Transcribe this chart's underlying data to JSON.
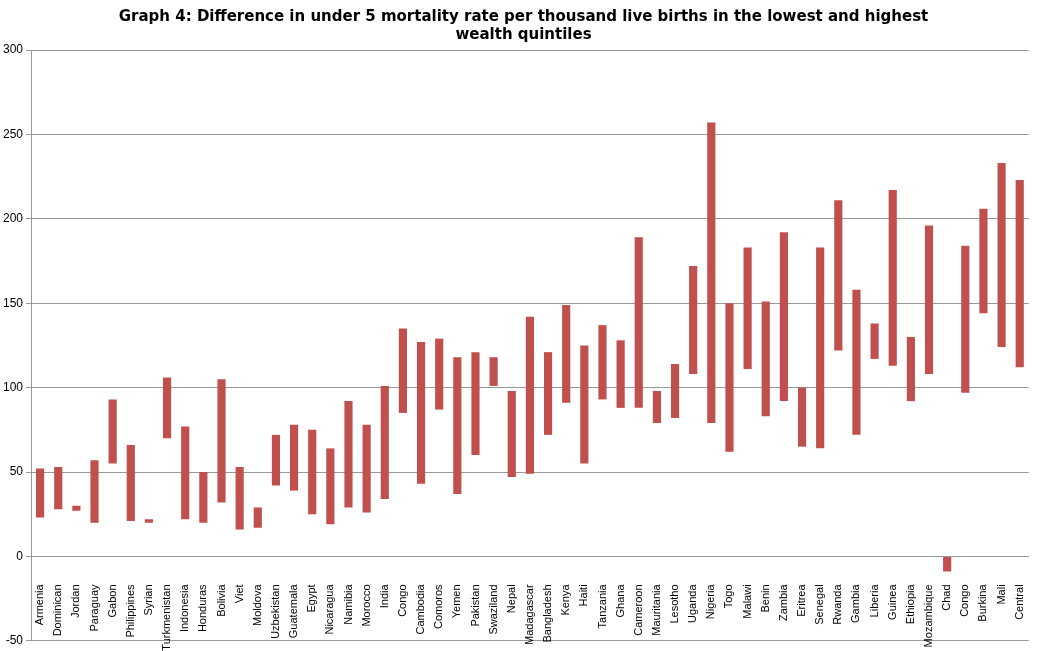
{
  "chart_data": {
    "type": "bar",
    "title": "Graph 4: Difference in under 5 mortality rate per thousand live births in the lowest and highest wealth quintiles",
    "categories": [
      "Armenia",
      "Dominican",
      "Jordan",
      "Paraguay",
      "Gabon",
      "Philippines",
      "Syrian",
      "Turkmenistan",
      "Indonesia",
      "Honduras",
      "Bolivia",
      "Viet",
      "Moldova",
      "Uzbekistan",
      "Guatemala",
      "Egypt",
      "Nicaragua",
      "Namibia",
      "Morocco",
      "India",
      "Congo",
      "Cambodia",
      "Comoros",
      "Yemen",
      "Pakistan",
      "Swaziland",
      "Nepal",
      "Madagascar",
      "Bangladesh",
      "Kenya",
      "Haiti",
      "Tanzania",
      "Ghana",
      "Cameroon",
      "Mauritania",
      "Lesotho",
      "Uganda",
      "Nigeria",
      "Togo",
      "Malawi",
      "Benin",
      "Zambia",
      "Eritrea",
      "Senegal",
      "Rwanda",
      "Gambia",
      "Liberia",
      "Guinea",
      "Ethiopia",
      "Mozambique",
      "Chad",
      "Congo",
      "Burkina",
      "Mali",
      "Central"
    ],
    "base": [
      23,
      28,
      27,
      20,
      55,
      21,
      20,
      70,
      22,
      20,
      32,
      16,
      17,
      42,
      39,
      25,
      19,
      29,
      26,
      34,
      85,
      43,
      87,
      37,
      60,
      101,
      47,
      49,
      72,
      91,
      55,
      93,
      88,
      88,
      79,
      82,
      108,
      79,
      62,
      111,
      83,
      92,
      65,
      64,
      122,
      72,
      117,
      113,
      92,
      108,
      -9,
      97,
      144,
      124,
      112
    ],
    "values": [
      29,
      25,
      3,
      37,
      38,
      45,
      2,
      36,
      55,
      30,
      73,
      37,
      12,
      30,
      39,
      50,
      45,
      63,
      52,
      67,
      50,
      84,
      42,
      81,
      61,
      17,
      51,
      93,
      49,
      58,
      70,
      44,
      40,
      101,
      19,
      32,
      64,
      178,
      88,
      72,
      68,
      100,
      35,
      119,
      89,
      86,
      21,
      104,
      38,
      88,
      9,
      87,
      62,
      109,
      111
    ],
    "color": "#c0504d",
    "ylim": [
      -50,
      300
    ],
    "yticks": [
      -50,
      0,
      50,
      100,
      150,
      200,
      250,
      300
    ],
    "grid": "y",
    "legend": false
  }
}
